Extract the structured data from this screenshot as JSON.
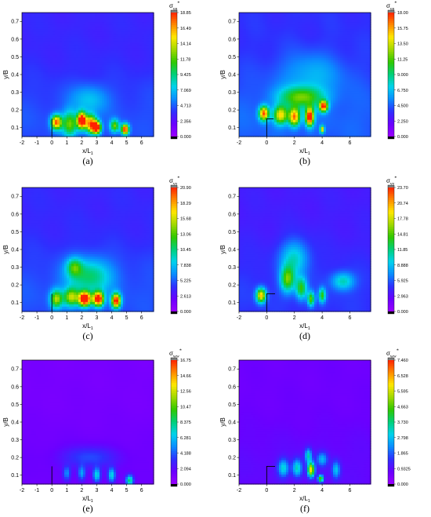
{
  "colors": {
    "scale": [
      "#9a00ff",
      "#6a00ff",
      "#2f2fff",
      "#0a8cff",
      "#00d2ee",
      "#00d07a",
      "#30c800",
      "#a0d800",
      "#ffe800",
      "#ff8a00",
      "#ff2200"
    ],
    "over": "#7f7f7f",
    "under": "#000000",
    "frame": "#000000"
  },
  "chart_data": [
    {
      "type": "heatmap",
      "panel_label": "(a)",
      "title": "σuu*",
      "title_main": "σ",
      "title_sub": "uu",
      "title_sup": "*",
      "xlabel": "x/L1",
      "xlabel_main": "x/L",
      "xlabel_sub": "1",
      "ylabel": "y/B",
      "xlim": [
        -2,
        6.8
      ],
      "ylim": [
        0.05,
        0.75
      ],
      "xticks": [
        "-2",
        "-1",
        "0",
        "1",
        "2",
        "3",
        "4",
        "5",
        "6"
      ],
      "yticks": [
        "0.1",
        "0.2",
        "0.3",
        "0.4",
        "0.5",
        "0.6",
        "0.7"
      ],
      "colorbar_ticks": [
        "18.85",
        "16.49",
        "14.14",
        "11.78",
        "9.425",
        "7.069",
        "4.713",
        "2.356",
        "0.000"
      ],
      "colorbar_range": [
        0,
        18.85
      ],
      "base_level": 4.0,
      "structure": [
        [
          0,
          0.05
        ],
        [
          0,
          0.15
        ]
      ],
      "hotspots": [
        {
          "x": 0.3,
          "y": 0.13,
          "v": 13.5,
          "sx": 0.35,
          "sy": 0.04
        },
        {
          "x": 1.2,
          "y": 0.12,
          "v": 8,
          "sx": 0.5,
          "sy": 0.07
        },
        {
          "x": 2.0,
          "y": 0.14,
          "v": 17.5,
          "sx": 0.3,
          "sy": 0.045
        },
        {
          "x": 2.6,
          "y": 0.12,
          "v": 13,
          "sx": 0.35,
          "sy": 0.05
        },
        {
          "x": 3.0,
          "y": 0.1,
          "v": 16,
          "sx": 0.28,
          "sy": 0.035
        },
        {
          "x": 4.2,
          "y": 0.11,
          "v": 8,
          "sx": 0.3,
          "sy": 0.035
        },
        {
          "x": 4.9,
          "y": 0.09,
          "v": 15,
          "sx": 0.25,
          "sy": 0.03
        },
        {
          "x": 2.5,
          "y": 0.26,
          "v": 3,
          "sx": 1.2,
          "sy": 0.08
        }
      ]
    },
    {
      "type": "heatmap",
      "panel_label": "(b)",
      "title": "σuu*",
      "title_main": "σ",
      "title_sub": "uu",
      "title_sup": "*",
      "xlabel": "x/L1",
      "xlabel_main": "x/L",
      "xlabel_sub": "1",
      "ylabel": "y/B",
      "xlim": [
        -2,
        7.5
      ],
      "ylim": [
        0.05,
        0.75
      ],
      "xticks": [
        "-2",
        "0",
        "2",
        "4",
        "6"
      ],
      "yticks": [
        "0.1",
        "0.2",
        "0.3",
        "0.4",
        "0.5",
        "0.6",
        "0.7"
      ],
      "colorbar_ticks": [
        "18.00",
        "15.75",
        "13.50",
        "11.25",
        "9.000",
        "6.750",
        "4.500",
        "2.250",
        "0.000"
      ],
      "colorbar_range": [
        0,
        18.0
      ],
      "base_level": 4.2,
      "structure": [
        [
          0,
          0.05
        ],
        [
          0,
          0.15
        ],
        [
          0.5,
          0.15
        ]
      ],
      "hotspots": [
        {
          "x": -0.2,
          "y": 0.18,
          "v": 13,
          "sx": 0.35,
          "sy": 0.04
        },
        {
          "x": 1.0,
          "y": 0.17,
          "v": 10,
          "sx": 0.5,
          "sy": 0.05
        },
        {
          "x": 2.0,
          "y": 0.16,
          "v": 12,
          "sx": 0.4,
          "sy": 0.05
        },
        {
          "x": 3.1,
          "y": 0.16,
          "v": 15,
          "sx": 0.3,
          "sy": 0.05
        },
        {
          "x": 4.1,
          "y": 0.22,
          "v": 13,
          "sx": 0.3,
          "sy": 0.03
        },
        {
          "x": 2.5,
          "y": 0.27,
          "v": 7,
          "sx": 1.6,
          "sy": 0.06
        },
        {
          "x": 4.0,
          "y": 0.09,
          "v": 10,
          "sx": 0.15,
          "sy": 0.02
        },
        {
          "x": 3.2,
          "y": 0.4,
          "v": 2.5,
          "sx": 2.2,
          "sy": 0.12
        }
      ]
    },
    {
      "type": "heatmap",
      "panel_label": "(c)",
      "title": "σvv*",
      "title_main": "σ",
      "title_sub": "vv",
      "title_sup": "*",
      "xlabel": "x/L1",
      "xlabel_main": "x/L",
      "xlabel_sub": "1",
      "ylabel": "y/B",
      "xlim": [
        -2,
        6.8
      ],
      "ylim": [
        0.05,
        0.75
      ],
      "xticks": [
        "-2",
        "-1",
        "0",
        "1",
        "2",
        "3",
        "4",
        "5",
        "6"
      ],
      "yticks": [
        "0.1",
        "0.2",
        "0.3",
        "0.4",
        "0.5",
        "0.6",
        "0.7"
      ],
      "colorbar_ticks": [
        "20.90",
        "18.29",
        "15.68",
        "13.06",
        "10.45",
        "7.838",
        "5.225",
        "2.613",
        "0.000"
      ],
      "colorbar_range": [
        0,
        20.9
      ],
      "base_level": 4.5,
      "structure": [
        [
          0,
          0.05
        ],
        [
          0,
          0.15
        ]
      ],
      "hotspots": [
        {
          "x": 0.3,
          "y": 0.12,
          "v": 10,
          "sx": 0.4,
          "sy": 0.05
        },
        {
          "x": 1.3,
          "y": 0.13,
          "v": 10,
          "sx": 0.5,
          "sy": 0.05
        },
        {
          "x": 2.2,
          "y": 0.12,
          "v": 20,
          "sx": 0.4,
          "sy": 0.04
        },
        {
          "x": 3.1,
          "y": 0.12,
          "v": 18,
          "sx": 0.35,
          "sy": 0.04
        },
        {
          "x": 4.3,
          "y": 0.11,
          "v": 17,
          "sx": 0.3,
          "sy": 0.04
        },
        {
          "x": 1.5,
          "y": 0.3,
          "v": 6,
          "sx": 0.5,
          "sy": 0.05
        },
        {
          "x": 2.5,
          "y": 0.25,
          "v": 6,
          "sx": 1.5,
          "sy": 0.1
        }
      ]
    },
    {
      "type": "heatmap",
      "panel_label": "(d)",
      "title": "σvv*",
      "title_main": "σ",
      "title_sub": "vv",
      "title_sup": "*",
      "xlabel": "x/L1",
      "xlabel_main": "x/L",
      "xlabel_sub": "1",
      "ylabel": "y/B",
      "xlim": [
        -2,
        7.5
      ],
      "ylim": [
        0.05,
        0.75
      ],
      "xticks": [
        "-2",
        "0",
        "2",
        "4",
        "6"
      ],
      "yticks": [
        "0.1",
        "0.2",
        "0.3",
        "0.4",
        "0.5",
        "0.6",
        "0.7"
      ],
      "colorbar_ticks": [
        "23.70",
        "20.74",
        "17.78",
        "14.81",
        "11.85",
        "8.888",
        "5.925",
        "2.963",
        "0.000"
      ],
      "colorbar_range": [
        0,
        23.7
      ],
      "base_level": 4.5,
      "structure": [
        [
          0,
          0.05
        ],
        [
          0,
          0.15
        ],
        [
          0.6,
          0.15
        ]
      ],
      "hotspots": [
        {
          "x": -0.4,
          "y": 0.14,
          "v": 15,
          "sx": 0.35,
          "sy": 0.04
        },
        {
          "x": 1.5,
          "y": 0.23,
          "v": 10,
          "sx": 0.5,
          "sy": 0.07
        },
        {
          "x": 2.5,
          "y": 0.18,
          "v": 9,
          "sx": 0.4,
          "sy": 0.06
        },
        {
          "x": 3.2,
          "y": 0.12,
          "v": 10,
          "sx": 0.25,
          "sy": 0.04
        },
        {
          "x": 4.0,
          "y": 0.14,
          "v": 9,
          "sx": 0.25,
          "sy": 0.04
        },
        {
          "x": 2.0,
          "y": 0.35,
          "v": 6,
          "sx": 1.0,
          "sy": 0.1
        },
        {
          "x": 5.5,
          "y": 0.22,
          "v": 6,
          "sx": 0.8,
          "sy": 0.05
        }
      ]
    },
    {
      "type": "heatmap",
      "panel_label": "(e)",
      "title": "σww*",
      "title_main": "σ",
      "title_sub": "ww",
      "title_sup": "*",
      "xlabel": "x/L1",
      "xlabel_main": "x/L",
      "xlabel_sub": "1",
      "ylabel": "y/B",
      "xlim": [
        -2,
        6.8
      ],
      "ylim": [
        0.05,
        0.75
      ],
      "xticks": [
        "-2",
        "-1",
        "0",
        "1",
        "2",
        "3",
        "4",
        "5",
        "6"
      ],
      "yticks": [
        "0.1",
        "0.2",
        "0.3",
        "0.4",
        "0.5",
        "0.6",
        "0.7"
      ],
      "colorbar_ticks": [
        "16.75",
        "14.66",
        "12.56",
        "10.47",
        "8.375",
        "6.281",
        "4.188",
        "2.094",
        "0.000"
      ],
      "colorbar_range": [
        0,
        16.75
      ],
      "base_level": 1.4,
      "structure": [
        [
          0,
          0.05
        ],
        [
          0,
          0.15
        ]
      ],
      "hotspots": [
        {
          "x": 1.0,
          "y": 0.11,
          "v": 3.5,
          "sx": 0.25,
          "sy": 0.04
        },
        {
          "x": 2.0,
          "y": 0.11,
          "v": 4.0,
          "sx": 0.25,
          "sy": 0.04
        },
        {
          "x": 3.0,
          "y": 0.1,
          "v": 5.5,
          "sx": 0.25,
          "sy": 0.04
        },
        {
          "x": 4.0,
          "y": 0.1,
          "v": 5.5,
          "sx": 0.25,
          "sy": 0.04
        },
        {
          "x": 5.2,
          "y": 0.07,
          "v": 7.0,
          "sx": 0.25,
          "sy": 0.03
        },
        {
          "x": 2.5,
          "y": 0.2,
          "v": 2.3,
          "sx": 1.8,
          "sy": 0.06
        }
      ]
    },
    {
      "type": "heatmap",
      "panel_label": "(f)",
      "title": "σww*",
      "title_main": "σ",
      "title_sub": "ww",
      "title_sup": "*",
      "xlabel": "x/L1",
      "xlabel_main": "x/L",
      "xlabel_sub": "1",
      "ylabel": "y/B",
      "xlim": [
        -2,
        7.5
      ],
      "ylim": [
        0.05,
        0.75
      ],
      "xticks": [
        "-2",
        "0",
        "2",
        "4",
        "6"
      ],
      "yticks": [
        "0.1",
        "0.2",
        "0.3",
        "0.4",
        "0.5",
        "0.6",
        "0.7"
      ],
      "colorbar_ticks": [
        "7.460",
        "6.528",
        "5.595",
        "4.663",
        "3.730",
        "2.798",
        "1.865",
        "0.9325",
        "0.000"
      ],
      "colorbar_range": [
        0,
        7.46
      ],
      "base_level": 0.8,
      "structure": [
        [
          0,
          0.05
        ],
        [
          0,
          0.15
        ],
        [
          0.6,
          0.15
        ]
      ],
      "hotspots": [
        {
          "x": 1.2,
          "y": 0.14,
          "v": 2.3,
          "sx": 0.4,
          "sy": 0.05
        },
        {
          "x": 2.2,
          "y": 0.14,
          "v": 2.5,
          "sx": 0.35,
          "sy": 0.05
        },
        {
          "x": 3.2,
          "y": 0.13,
          "v": 5.3,
          "sx": 0.25,
          "sy": 0.04
        },
        {
          "x": 3.0,
          "y": 0.21,
          "v": 2.5,
          "sx": 0.25,
          "sy": 0.04
        },
        {
          "x": 3.9,
          "y": 0.08,
          "v": 4.0,
          "sx": 0.2,
          "sy": 0.02
        },
        {
          "x": 5.0,
          "y": 0.13,
          "v": 2.0,
          "sx": 0.3,
          "sy": 0.05
        },
        {
          "x": 4.0,
          "y": 0.19,
          "v": 1.8,
          "sx": 0.4,
          "sy": 0.04
        }
      ]
    }
  ]
}
